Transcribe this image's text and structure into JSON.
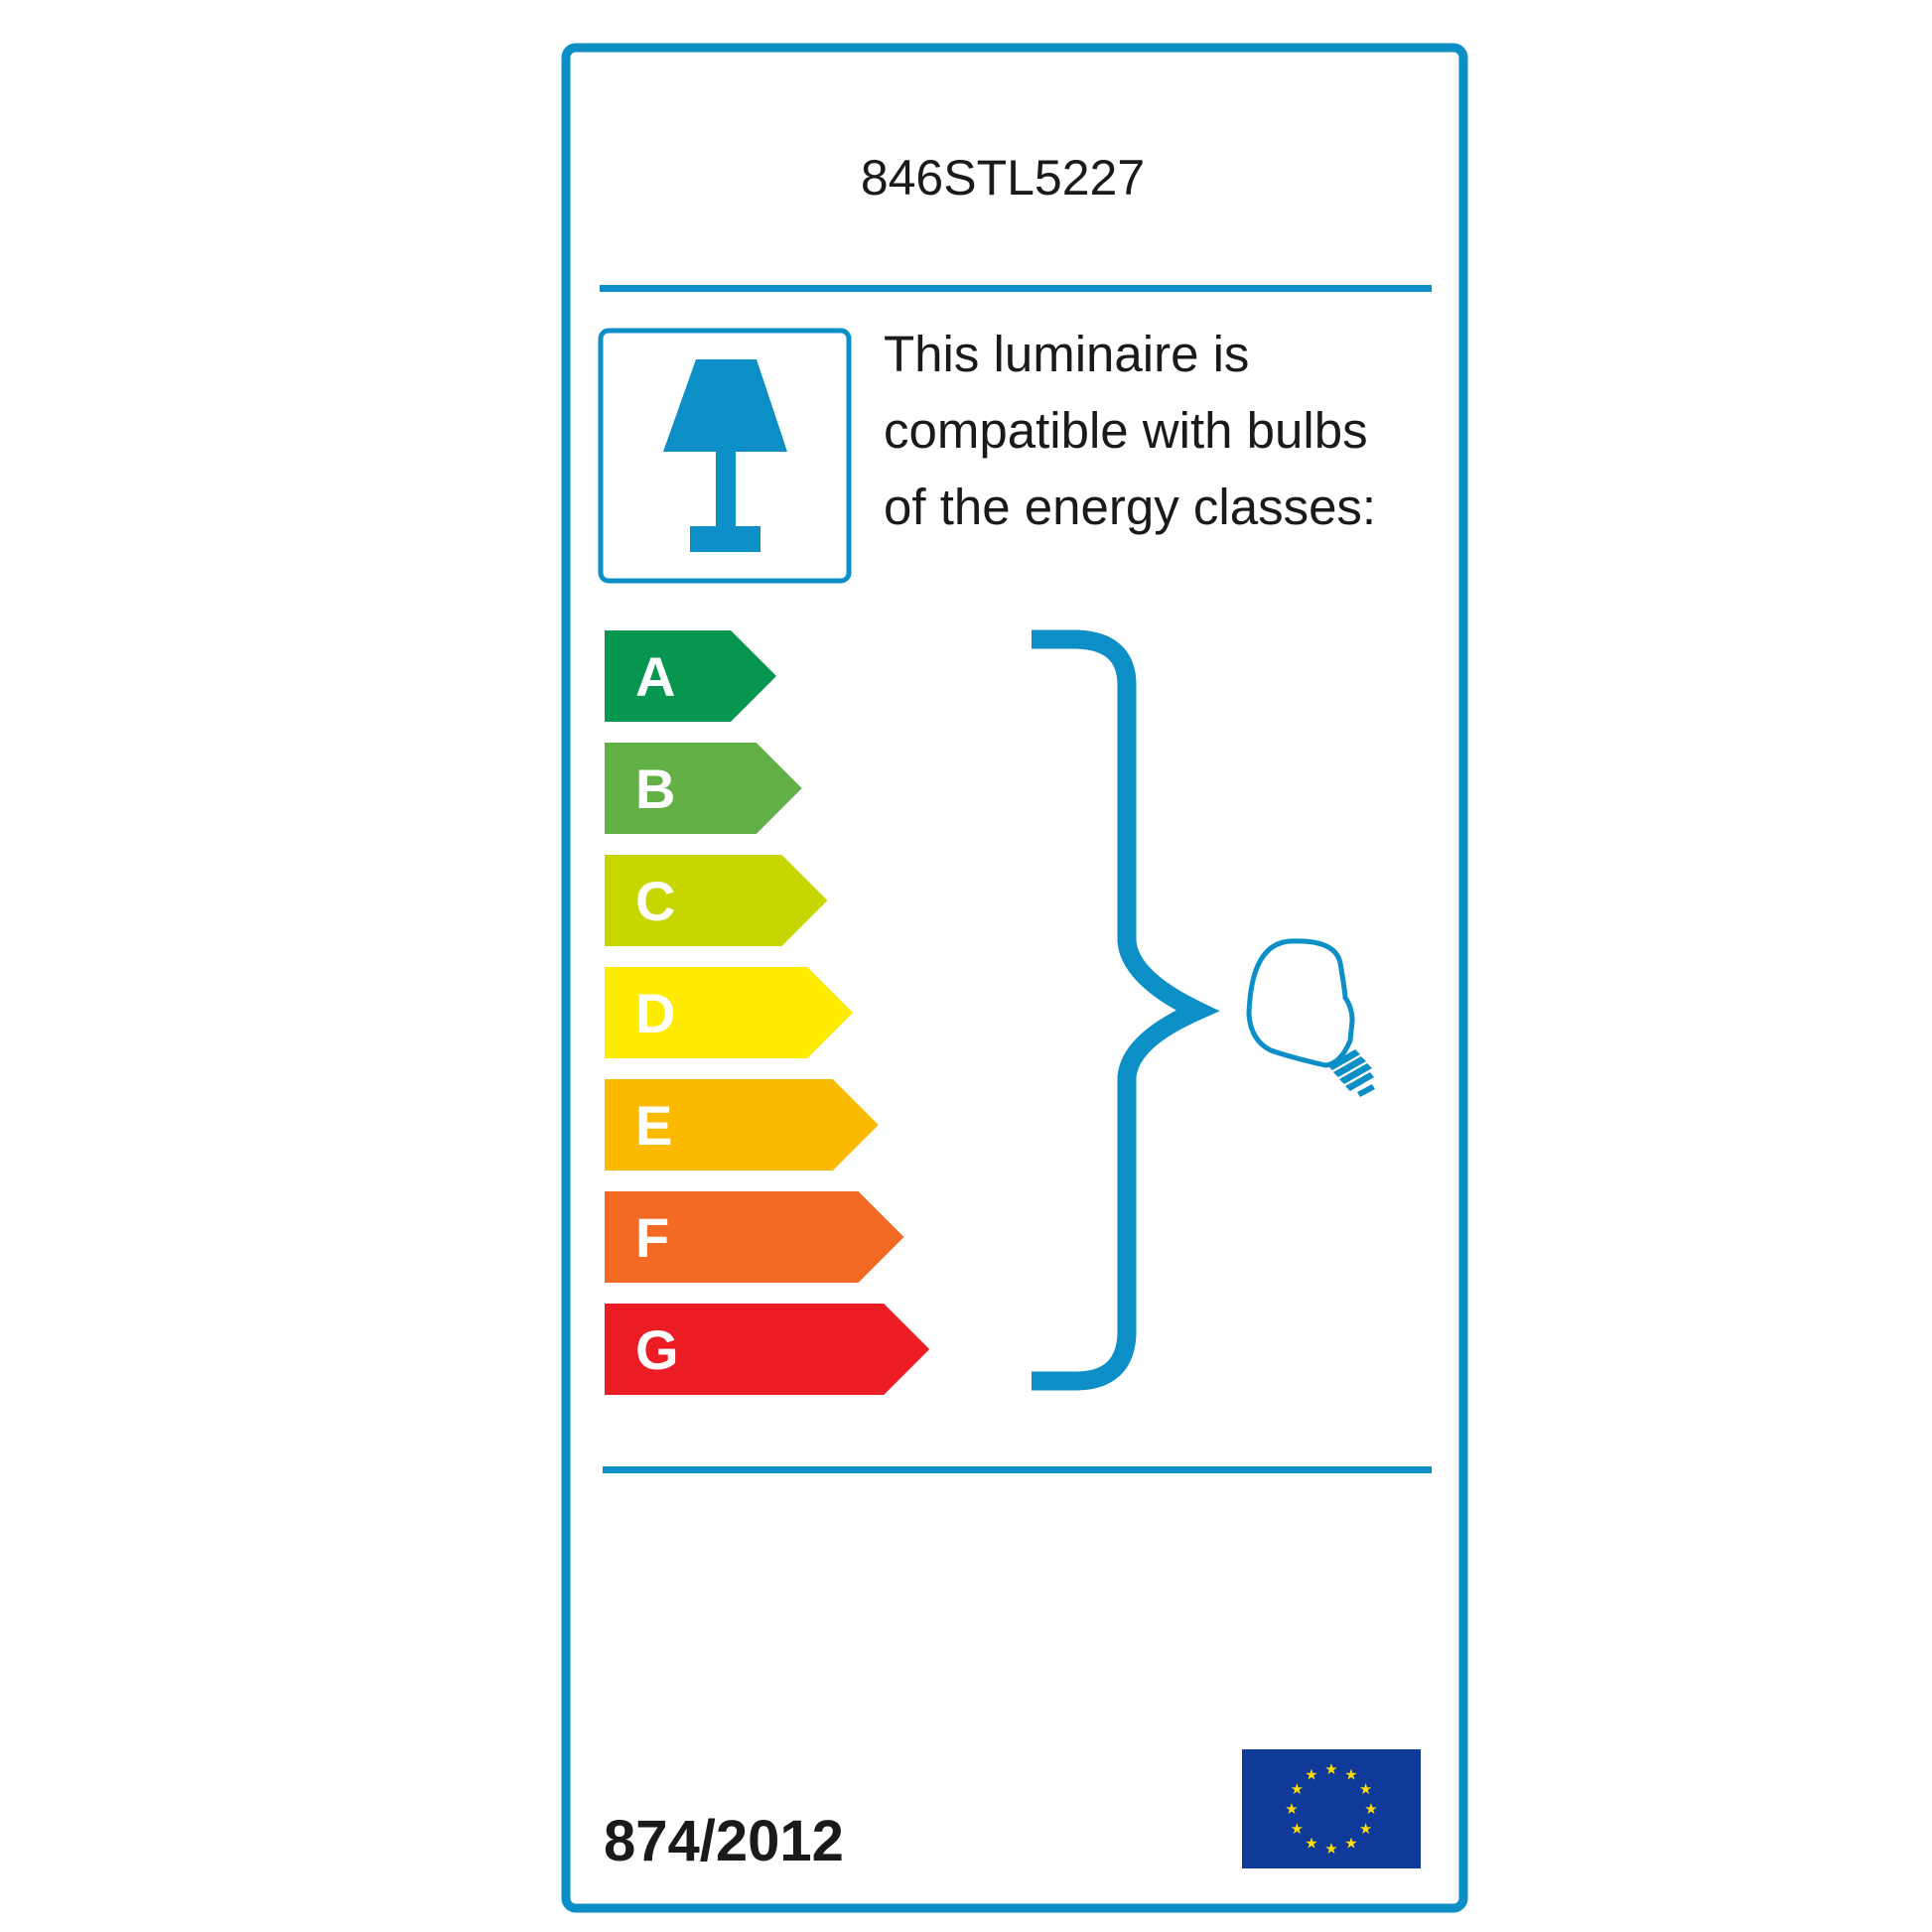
{
  "label": {
    "model_code": "846STL5227",
    "description_lines": [
      "This luminaire is",
      "compatible with bulbs",
      "of the energy classes:"
    ],
    "regulation": "874/2012",
    "accent_color": "#0c8fc6",
    "energy_classes": [
      {
        "letter": "A",
        "color": "#06964f"
      },
      {
        "letter": "B",
        "color": "#62b046"
      },
      {
        "letter": "C",
        "color": "#c8d600"
      },
      {
        "letter": "D",
        "color": "#feeb00"
      },
      {
        "letter": "E",
        "color": "#fbba00"
      },
      {
        "letter": "F",
        "color": "#f36a25"
      },
      {
        "letter": "G",
        "color": "#eb1c24"
      }
    ],
    "icons": [
      "table-lamp-icon",
      "curly-brace",
      "light-bulb-icon",
      "eu-flag-icon"
    ],
    "eu_flag": {
      "background": "#0f3a99",
      "star_color": "#ffdd00"
    }
  }
}
